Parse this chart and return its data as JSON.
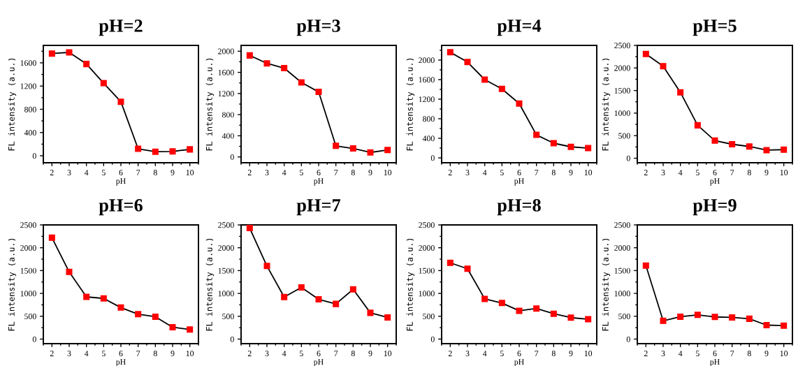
{
  "chart_data": [
    {
      "type": "line",
      "title": "pH=2",
      "xlabel": "pH",
      "ylabel": "FL intensity (a.u.)",
      "x": [
        2,
        3,
        4,
        5,
        6,
        7,
        8,
        9,
        10
      ],
      "xlim": [
        1.5,
        10.5
      ],
      "xticks": [
        2,
        3,
        4,
        5,
        6,
        7,
        8,
        9,
        10
      ],
      "ylim": [
        -120,
        1900
      ],
      "yticks": [
        0,
        400,
        800,
        1200,
        1600
      ],
      "marker": "square",
      "line_style": "solid",
      "grid": false,
      "series": [
        {
          "color": "#000000",
          "colors": [
            "#ff0000",
            "#ff0000",
            "#ff0000",
            "#ff0000",
            "#ff0000",
            "#ff0000",
            "#ff0000",
            "#ff0000",
            "#ff0000"
          ],
          "values": [
            1760,
            1780,
            1580,
            1250,
            930,
            120,
            70,
            75,
            110
          ]
        }
      ]
    },
    {
      "type": "line",
      "title": "pH=3",
      "xlabel": "pH",
      "ylabel": "FL intensity (a.u.)",
      "x": [
        2,
        3,
        4,
        5,
        6,
        7,
        8,
        9,
        10
      ],
      "xlim": [
        1.5,
        10.5
      ],
      "xticks": [
        2,
        3,
        4,
        5,
        6,
        7,
        8,
        9,
        10
      ],
      "ylim": [
        -110,
        2110
      ],
      "yticks": [
        0,
        400,
        800,
        1200,
        1600,
        2000
      ],
      "marker": "square",
      "line_style": "solid",
      "grid": false,
      "series": [
        {
          "color": "#000000",
          "colors": [
            "#ff0000",
            "#ff0000",
            "#ff0000",
            "#ff0000",
            "#ff0000",
            "#ff0000",
            "#ff0000",
            "#ff0000",
            "#ff0000"
          ],
          "values": [
            1920,
            1770,
            1680,
            1410,
            1230,
            210,
            160,
            85,
            130
          ]
        }
      ]
    },
    {
      "type": "line",
      "title": "pH=4",
      "xlabel": "pH",
      "ylabel": "FL intensity (a.u.)",
      "x": [
        2,
        3,
        4,
        5,
        6,
        7,
        8,
        9,
        10
      ],
      "xlim": [
        1.5,
        10.5
      ],
      "xticks": [
        2,
        3,
        4,
        5,
        6,
        7,
        8,
        9,
        10
      ],
      "ylim": [
        -100,
        2300
      ],
      "yticks": [
        0,
        400,
        800,
        1200,
        1600,
        2000
      ],
      "marker": "square",
      "line_style": "solid",
      "grid": false,
      "series": [
        {
          "color": "#000000",
          "colors": [
            "#ff0000",
            "#ff0000",
            "#ff0000",
            "#ff0000",
            "#ff0000",
            "#ff0000",
            "#ff0000",
            "#ff0000",
            "#ff0000"
          ],
          "values": [
            2160,
            1960,
            1600,
            1410,
            1110,
            470,
            300,
            225,
            200
          ]
        }
      ]
    },
    {
      "type": "line",
      "title": "pH=5",
      "xlabel": "pH",
      "ylabel": "FL intensity (a.u.)",
      "x": [
        2,
        3,
        4,
        5,
        6,
        7,
        8,
        9,
        10
      ],
      "xlim": [
        1.5,
        10.5
      ],
      "xticks": [
        2,
        3,
        4,
        5,
        6,
        7,
        8,
        9,
        10
      ],
      "ylim": [
        -100,
        2500
      ],
      "yticks": [
        0,
        500,
        1000,
        1500,
        2000,
        2500
      ],
      "marker": "square",
      "line_style": "solid",
      "grid": false,
      "series": [
        {
          "color": "#000000",
          "colors": [
            "#ff0000",
            "#ff0000",
            "#ff0000",
            "#ff0000",
            "#ff0000",
            "#ff0000",
            "#ff0000",
            "#ff0000",
            "#ff0000"
          ],
          "values": [
            2310,
            2040,
            1460,
            730,
            390,
            310,
            260,
            180,
            190
          ]
        }
      ]
    },
    {
      "type": "line",
      "title": "pH=6",
      "xlabel": "pH",
      "ylabel": "FL intensity (a.u.)",
      "x": [
        2,
        3,
        4,
        5,
        6,
        7,
        8,
        9,
        10
      ],
      "xlim": [
        1.5,
        10.5
      ],
      "xticks": [
        2,
        3,
        4,
        5,
        6,
        7,
        8,
        9,
        10
      ],
      "ylim": [
        -100,
        2500
      ],
      "yticks": [
        0,
        500,
        1000,
        1500,
        2000,
        2500
      ],
      "marker": "square",
      "line_style": "solid",
      "grid": false,
      "series": [
        {
          "color": "#000000",
          "colors": [
            "#ff0000",
            "#ff0000",
            "#ff0000",
            "#ff0000",
            "#ff0000",
            "#ff0000",
            "#ff0000",
            "#ff0000",
            "#ff0000"
          ],
          "values": [
            2220,
            1470,
            925,
            890,
            690,
            545,
            490,
            260,
            210
          ]
        }
      ]
    },
    {
      "type": "line",
      "title": "pH=7",
      "xlabel": "pH",
      "ylabel": "FL intensity (a.u.)",
      "x": [
        2,
        3,
        4,
        5,
        6,
        7,
        8,
        9,
        10
      ],
      "xlim": [
        1.5,
        10.5
      ],
      "xticks": [
        2,
        3,
        4,
        5,
        6,
        7,
        8,
        9,
        10
      ],
      "ylim": [
        -100,
        2500
      ],
      "yticks": [
        0,
        500,
        1000,
        1500,
        2000,
        2500
      ],
      "marker": "square",
      "line_style": "solid",
      "grid": false,
      "series": [
        {
          "color": "#000000",
          "colors": [
            "#ff0000",
            "#ff0000",
            "#ff0000",
            "#ff0000",
            "#ff0000",
            "#ff0000",
            "#ff0000",
            "#ff0000",
            "#ff0000"
          ],
          "values": [
            2430,
            1600,
            920,
            1130,
            870,
            770,
            1090,
            575,
            475
          ]
        }
      ]
    },
    {
      "type": "line",
      "title": "pH=8",
      "xlabel": "pH",
      "ylabel": "FL intensity (a.u.)",
      "x": [
        2,
        3,
        4,
        5,
        6,
        7,
        8,
        9,
        10
      ],
      "xlim": [
        1.5,
        10.5
      ],
      "xticks": [
        2,
        3,
        4,
        5,
        6,
        7,
        8,
        9,
        10
      ],
      "ylim": [
        -100,
        2500
      ],
      "yticks": [
        0,
        500,
        1000,
        1500,
        2000,
        2500
      ],
      "marker": "square",
      "line_style": "solid",
      "grid": false,
      "series": [
        {
          "color": "#000000",
          "colors": [
            "#ff0000",
            "#ff0000",
            "#ff0000",
            "#ff0000",
            "#ff0000",
            "#ff0000",
            "#ff0000",
            "#ff0000",
            "#ff0000"
          ],
          "values": [
            1670,
            1540,
            880,
            790,
            620,
            670,
            555,
            470,
            435
          ]
        }
      ]
    },
    {
      "type": "line",
      "title": "pH=9",
      "xlabel": "pH",
      "ylabel": "FL intensity (a.u.)",
      "x": [
        2,
        3,
        4,
        5,
        6,
        7,
        8,
        9,
        10
      ],
      "xlim": [
        1.5,
        10.5
      ],
      "xticks": [
        2,
        3,
        4,
        5,
        6,
        7,
        8,
        9,
        10
      ],
      "ylim": [
        -100,
        2500
      ],
      "yticks": [
        0,
        500,
        1000,
        1500,
        2000,
        2500
      ],
      "marker": "square",
      "line_style": "solid",
      "grid": false,
      "series": [
        {
          "color": "#000000",
          "colors": [
            "#ff0000",
            "#ff0000",
            "#ff0000",
            "#ff0000",
            "#ff0000",
            "#ff0000",
            "#ff0000",
            "#ff0000",
            "#ff0000"
          ],
          "values": [
            1610,
            400,
            490,
            530,
            485,
            475,
            445,
            305,
            295
          ]
        }
      ]
    }
  ]
}
